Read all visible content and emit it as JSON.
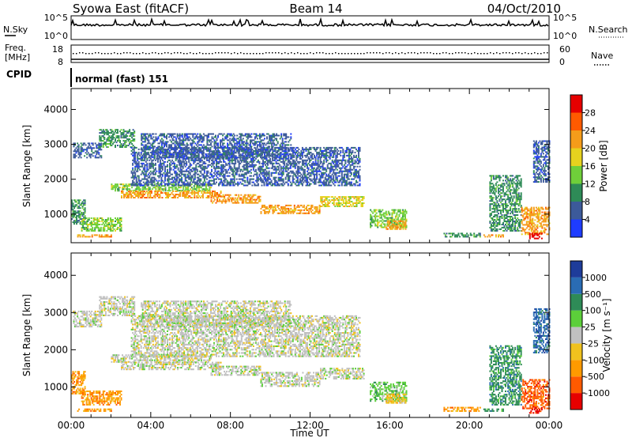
{
  "header": {
    "station": "Syowa East (fitACF)",
    "beam": "Beam 14",
    "date": "04/Oct/2010"
  },
  "top_panels": {
    "nsky_label": "N.Sky",
    "nsky_ticks": [
      "10^5",
      "10^0"
    ],
    "nsearch_label": "N.Search",
    "nsearch_ticks": [
      "10^5",
      "10^0"
    ],
    "freq_label": "Freq.",
    "freq_unit": "[MHz]",
    "freq_ticks": [
      "18",
      "8"
    ],
    "nave_label": "Nave",
    "nave_ticks": [
      "60",
      "0"
    ],
    "cpid_label": "CPID",
    "cpid_value": "normal (fast) 151"
  },
  "chart_data": [
    {
      "type": "heatmap",
      "name": "power",
      "ylabel": "Slant Range [km]",
      "ylim": [
        180,
        4600
      ],
      "yticks": [
        1000,
        2000,
        3000,
        4000
      ],
      "x_hours_range": [
        0,
        24
      ],
      "colorbar": {
        "label": "Power [dB]",
        "ticks": [
          "4",
          "8",
          "12",
          "16",
          "20",
          "24",
          "28"
        ],
        "colors": [
          "#1e3cff",
          "#3c5a9a",
          "#2e8b57",
          "#6fcf3a",
          "#e6d21e",
          "#f59c1a",
          "#ff5a00",
          "#e60000"
        ]
      },
      "echo_regions": [
        {
          "t": [
            1.4,
            3.2
          ],
          "r": [
            2900,
            3400
          ],
          "level": 2
        },
        {
          "t": [
            0.1,
            1.5
          ],
          "r": [
            2600,
            3050
          ],
          "level": 1
        },
        {
          "t": [
            0.0,
            0.7
          ],
          "r": [
            700,
            1400
          ],
          "level": 2
        },
        {
          "t": [
            0.3,
            2.0
          ],
          "r": [
            330,
            420
          ],
          "level": 5
        },
        {
          "t": [
            0.5,
            2.5
          ],
          "r": [
            500,
            900
          ],
          "level": 3
        },
        {
          "t": [
            2.0,
            7.0
          ],
          "r": [
            1650,
            1850
          ],
          "level": 3
        },
        {
          "t": [
            2.5,
            7.5
          ],
          "r": [
            1450,
            1650
          ],
          "level": 5
        },
        {
          "t": [
            7.0,
            9.5
          ],
          "r": [
            1300,
            1550
          ],
          "level": 5
        },
        {
          "t": [
            9.5,
            12.5
          ],
          "r": [
            1000,
            1250
          ],
          "level": 5
        },
        {
          "t": [
            12.5,
            14.7
          ],
          "r": [
            1200,
            1500
          ],
          "level": 4
        },
        {
          "t": [
            3.0,
            14.5
          ],
          "r": [
            1800,
            2900
          ],
          "level": 1
        },
        {
          "t": [
            3.5,
            11.0
          ],
          "r": [
            2600,
            3300
          ],
          "level": 1
        },
        {
          "t": [
            15.0,
            16.8
          ],
          "r": [
            600,
            1100
          ],
          "level": 3
        },
        {
          "t": [
            15.8,
            16.8
          ],
          "r": [
            550,
            800
          ],
          "level": 5
        },
        {
          "t": [
            18.7,
            20.5
          ],
          "r": [
            330,
            450
          ],
          "level": 2
        },
        {
          "t": [
            20.7,
            21.7
          ],
          "r": [
            330,
            420
          ],
          "level": 5
        },
        {
          "t": [
            21.0,
            22.6
          ],
          "r": [
            500,
            2100
          ],
          "level": 2
        },
        {
          "t": [
            22.6,
            24.0
          ],
          "r": [
            400,
            1200
          ],
          "level": 5
        },
        {
          "t": [
            23.0,
            23.6
          ],
          "r": [
            280,
            420
          ],
          "level": 7
        },
        {
          "t": [
            23.2,
            24.0
          ],
          "r": [
            1900,
            3100
          ],
          "level": 1
        }
      ]
    },
    {
      "type": "heatmap",
      "name": "velocity",
      "ylabel": "Slant Range [km]",
      "ylim": [
        180,
        4600
      ],
      "yticks": [
        1000,
        2000,
        3000,
        4000
      ],
      "xlabel": "Time UT",
      "xticks": [
        "00:00",
        "04:00",
        "08:00",
        "12:00",
        "16:00",
        "20:00",
        "00:00"
      ],
      "x_hours_range": [
        0,
        24
      ],
      "colorbar": {
        "label": "Velocity [m s⁻¹]",
        "ticks": [
          "1000",
          "500",
          "100",
          "25",
          "-25",
          "-100",
          "-500",
          "-1000"
        ],
        "colors": [
          "#1e3c9a",
          "#2a6cb4",
          "#2e8b57",
          "#5ccf3a",
          "#c0c0c0",
          "#f0c21e",
          "#ff9a00",
          "#ff5a00",
          "#e60000"
        ]
      },
      "echo_regions": [
        {
          "t": [
            1.4,
            3.2
          ],
          "r": [
            2900,
            3400
          ],
          "level": 4
        },
        {
          "t": [
            0.1,
            1.5
          ],
          "r": [
            2600,
            3050
          ],
          "level": 4
        },
        {
          "t": [
            0.0,
            0.7
          ],
          "r": [
            800,
            1400
          ],
          "level": 6
        },
        {
          "t": [
            0.3,
            2.0
          ],
          "r": [
            330,
            420
          ],
          "level": 6
        },
        {
          "t": [
            0.5,
            2.5
          ],
          "r": [
            500,
            900
          ],
          "level": 6
        },
        {
          "t": [
            2.0,
            7.0
          ],
          "r": [
            1650,
            1850
          ],
          "level": 4
        },
        {
          "t": [
            2.5,
            7.5
          ],
          "r": [
            1450,
            1650
          ],
          "level": 4
        },
        {
          "t": [
            7.0,
            9.5
          ],
          "r": [
            1300,
            1550
          ],
          "level": 4
        },
        {
          "t": [
            9.5,
            12.5
          ],
          "r": [
            1000,
            1400
          ],
          "level": 4
        },
        {
          "t": [
            12.5,
            14.7
          ],
          "r": [
            1200,
            1500
          ],
          "level": 4
        },
        {
          "t": [
            3.0,
            14.5
          ],
          "r": [
            1800,
            2900
          ],
          "level": 4
        },
        {
          "t": [
            3.5,
            11.0
          ],
          "r": [
            2600,
            3300
          ],
          "level": 4
        },
        {
          "t": [
            15.0,
            16.8
          ],
          "r": [
            600,
            1100
          ],
          "level": 3
        },
        {
          "t": [
            15.8,
            16.8
          ],
          "r": [
            550,
            800
          ],
          "level": 5
        },
        {
          "t": [
            18.7,
            20.5
          ],
          "r": [
            330,
            450
          ],
          "level": 6
        },
        {
          "t": [
            20.7,
            21.7
          ],
          "r": [
            330,
            420
          ],
          "level": 2
        },
        {
          "t": [
            21.0,
            22.6
          ],
          "r": [
            500,
            2100
          ],
          "level": 2
        },
        {
          "t": [
            22.6,
            24.0
          ],
          "r": [
            400,
            1200
          ],
          "level": 7
        },
        {
          "t": [
            23.0,
            23.6
          ],
          "r": [
            280,
            420
          ],
          "level": 8
        },
        {
          "t": [
            23.2,
            24.0
          ],
          "r": [
            1900,
            3100
          ],
          "level": 1
        }
      ]
    }
  ]
}
